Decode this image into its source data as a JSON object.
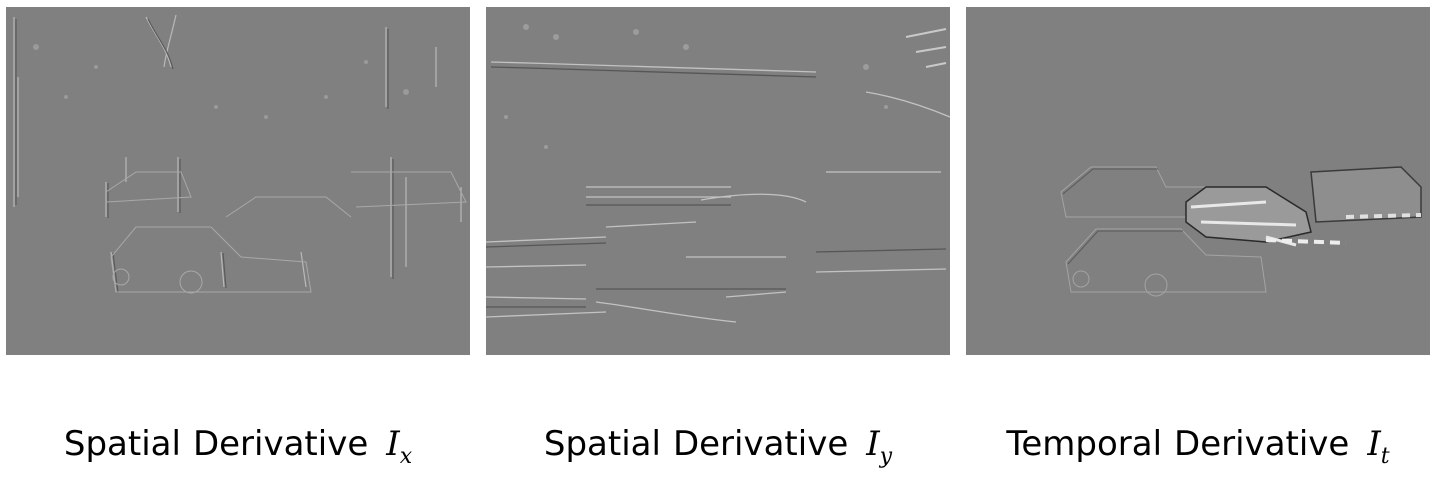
{
  "panels": [
    {
      "caption_words": [
        "Spatial",
        "Derivative"
      ],
      "symbol": "I",
      "subscript": "x"
    },
    {
      "caption_words": [
        "Spatial",
        "Derivative"
      ],
      "symbol": "I",
      "subscript": "y"
    },
    {
      "caption_words": [
        "Temporal",
        "Derivative"
      ],
      "symbol": "I",
      "subscript": "t"
    }
  ],
  "colors": {
    "background": "#808080",
    "edge_light": "#d8d8d8",
    "edge_dark": "#4a4a4a"
  }
}
